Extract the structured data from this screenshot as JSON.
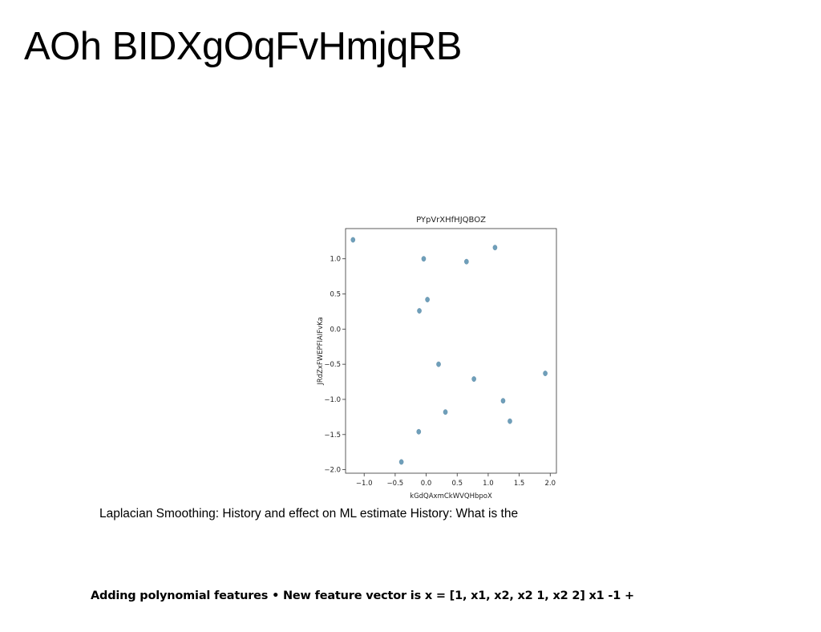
{
  "slide": {
    "title": "AOh BIDXgOqFvHmjqRB",
    "caption_1": "Laplacian Smoothing: History and effect on ML estimate History: What is the",
    "caption_2": "Adding polynomial features • New feature vector is x = [1, x1, x2, x2 1, x2 2] x1 -1 +"
  },
  "chart_data": {
    "type": "scatter",
    "title": "PYpVrXHfHJQBOZ",
    "xlabel": "kGdQAxmCkWVQHbpoX",
    "ylabel": "JRdZxFWEPFlAIFvKa",
    "xlim": [
      -1.3,
      2.1
    ],
    "ylim": [
      -2.05,
      1.43
    ],
    "xticks": [
      -1.0,
      -0.5,
      0.0,
      0.5,
      1.0,
      1.5,
      2.0
    ],
    "xtick_labels": [
      "−1.0",
      "−0.5",
      "0.0",
      "0.5",
      "1.0",
      "1.5",
      "2.0"
    ],
    "yticks": [
      -2.0,
      -1.5,
      -1.0,
      -0.5,
      0.0,
      0.5,
      1.0
    ],
    "ytick_labels": [
      "−2.0",
      "−1.5",
      "−1.0",
      "−0.5",
      "0.0",
      "0.5",
      "1.0"
    ],
    "grid": false,
    "marker_color": "#6f9fba",
    "points": [
      {
        "x": -1.18,
        "y": 1.27
      },
      {
        "x": -0.04,
        "y": 1.0
      },
      {
        "x": 0.65,
        "y": 0.96
      },
      {
        "x": 1.11,
        "y": 1.16
      },
      {
        "x": 0.02,
        "y": 0.42
      },
      {
        "x": -0.11,
        "y": 0.26
      },
      {
        "x": 0.2,
        "y": -0.5
      },
      {
        "x": 0.77,
        "y": -0.71
      },
      {
        "x": 1.92,
        "y": -0.63
      },
      {
        "x": 1.24,
        "y": -1.02
      },
      {
        "x": 0.31,
        "y": -1.18
      },
      {
        "x": 1.35,
        "y": -1.31
      },
      {
        "x": -0.12,
        "y": -1.46
      },
      {
        "x": -0.4,
        "y": -1.89
      }
    ]
  }
}
